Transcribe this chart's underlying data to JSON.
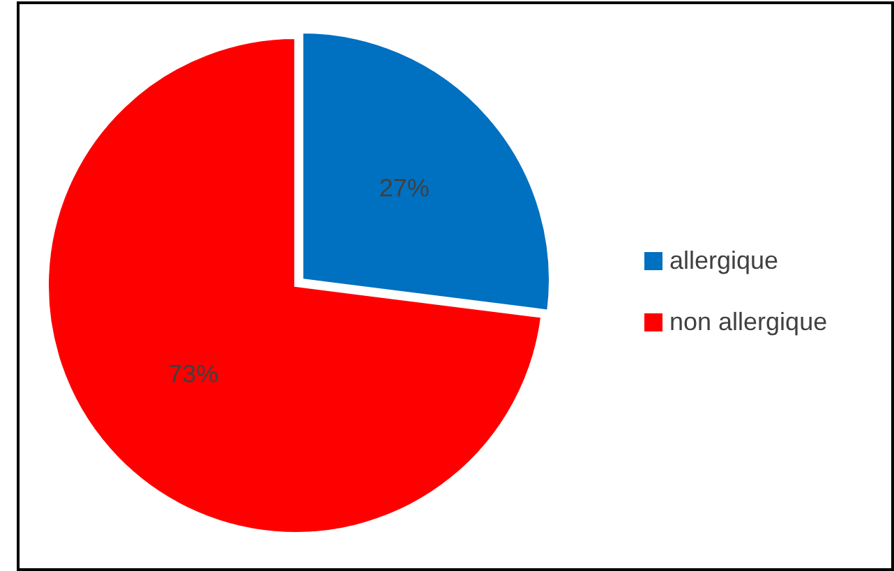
{
  "chart_data": {
    "type": "pie",
    "categories": [
      "allergique",
      "non allergique"
    ],
    "values": [
      27,
      73
    ],
    "colors": [
      "#0070c0",
      "#ff0000"
    ],
    "value_labels": [
      "27%",
      "73%"
    ],
    "legend": "right"
  }
}
